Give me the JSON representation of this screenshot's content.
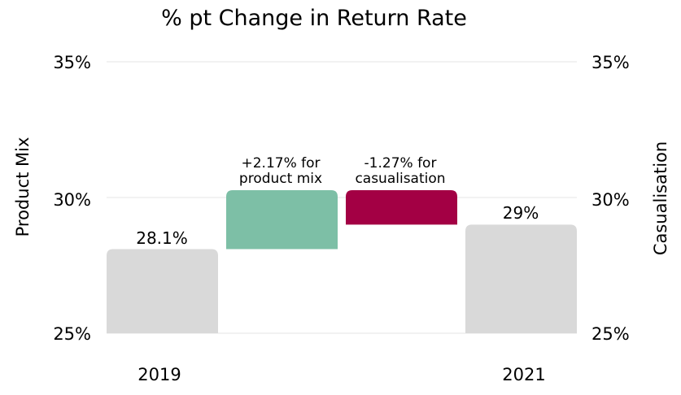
{
  "chart_data": {
    "type": "bar",
    "subtype": "waterfall",
    "title": "% pt Change in Return Rate",
    "ylabel_left": "Product Mix",
    "ylabel_right": "Casualisation",
    "ylim": [
      25,
      35
    ],
    "yticks": [
      "25%",
      "30%",
      "35%"
    ],
    "ytick_values": [
      25,
      30,
      35
    ],
    "categories": [
      "2019",
      "",
      "",
      "2021"
    ],
    "steps": [
      {
        "name": "2019",
        "kind": "total",
        "start": 25,
        "end": 28.1,
        "label": "28.1%",
        "color": "#d9d9d9"
      },
      {
        "name": "Product Mix",
        "kind": "delta",
        "start": 28.1,
        "end": 30.27,
        "label": "+2.17% for product mix",
        "color": "#7dbfa6"
      },
      {
        "name": "Casualisation",
        "kind": "delta",
        "start": 30.27,
        "end": 29.0,
        "label": "-1.27% for casualisation",
        "color": "#a30044"
      },
      {
        "name": "2021",
        "kind": "total",
        "start": 25,
        "end": 29.0,
        "label": "29%",
        "color": "#d9d9d9"
      }
    ],
    "annotations": {
      "product_mix": [
        "+2.17% for",
        "product mix"
      ],
      "casualisation": [
        "-1.27% for",
        "casualisation"
      ]
    },
    "grid": true,
    "gridline_color": "#e6e6e6"
  }
}
